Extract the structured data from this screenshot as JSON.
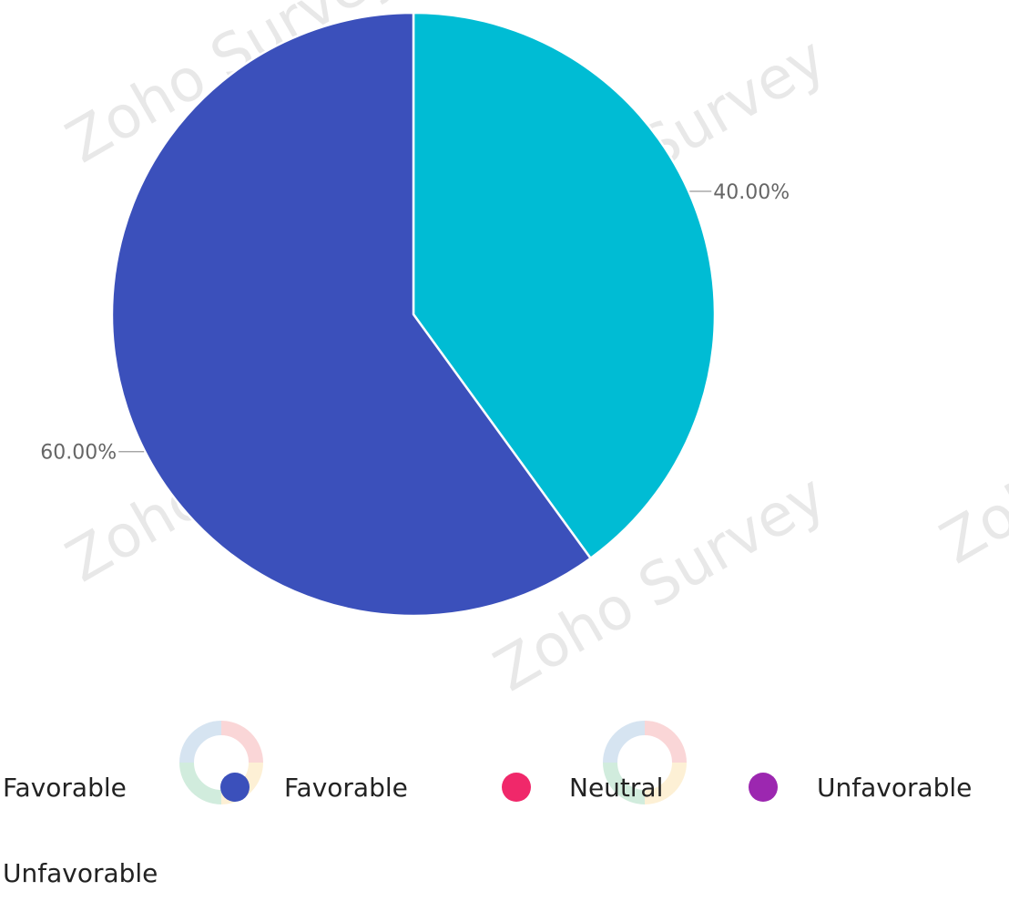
{
  "watermark": {
    "brand_text": "Zoho Survey",
    "logo_colors": [
      "#e42527",
      "#f9b21d",
      "#089949",
      "#226db4"
    ]
  },
  "chart_data": {
    "type": "pie",
    "start_angle_deg": 0,
    "direction": "clockwise",
    "slices": [
      {
        "name": "Favorable",
        "value": 40.0,
        "label": "40.00%",
        "color": "#00bcd4"
      },
      {
        "name": "Unfavorable",
        "value": 60.0,
        "label": "60.00%",
        "color": "#3b50bb"
      }
    ],
    "legend": {
      "items": [
        {
          "label": "Favorable",
          "marker": false
        },
        {
          "label": "Favorable",
          "marker": true,
          "color": "#3b50bb"
        },
        {
          "label": "Neutral",
          "marker": true,
          "color": "#f0286a"
        },
        {
          "label": "Unfavorable",
          "marker": true,
          "color": "#9c27b0"
        },
        {
          "label": "Unfavorable",
          "marker": false
        }
      ]
    },
    "label_color": "#666666",
    "slice_border_color": "#ffffff"
  }
}
